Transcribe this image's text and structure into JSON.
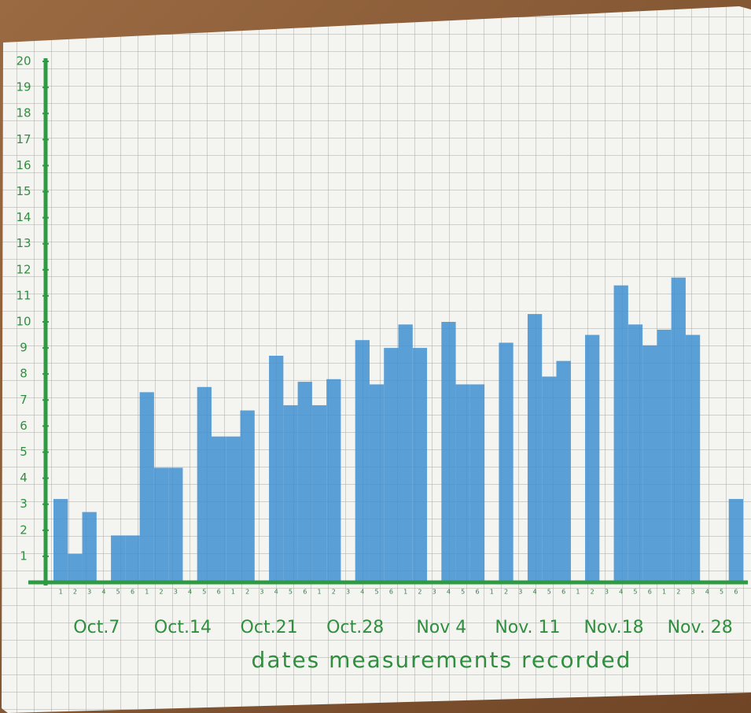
{
  "chart_data": {
    "type": "bar",
    "categories": [
      "1",
      "2",
      "3",
      "4",
      "5",
      "6",
      "1",
      "2",
      "3",
      "4",
      "5",
      "6",
      "1",
      "2",
      "3",
      "4",
      "5",
      "6",
      "1",
      "2",
      "3",
      "4",
      "5",
      "6",
      "1",
      "2",
      "3",
      "4",
      "5",
      "6",
      "1",
      "2",
      "3",
      "4",
      "5",
      "6",
      "1",
      "2",
      "3",
      "4",
      "5",
      "6",
      "1",
      "2",
      "3",
      "4",
      "5",
      "6"
    ],
    "values": [
      3.2,
      1.1,
      2.7,
      0,
      1.8,
      1.8,
      7.3,
      4.4,
      4.4,
      0,
      7.5,
      5.6,
      5.6,
      6.6,
      0,
      8.7,
      6.8,
      7.7,
      6.8,
      7.8,
      0,
      9.3,
      7.6,
      9.0,
      9.9,
      9.0,
      0,
      10.0,
      7.6,
      7.6,
      0,
      9.2,
      0,
      10.3,
      7.9,
      8.5,
      0,
      9.5,
      0,
      11.4,
      9.9,
      9.1,
      9.7,
      11.7,
      9.5,
      0,
      0,
      3.2
    ],
    "week_labels": [
      "Oct.7",
      "Oct.14",
      "Oct.21",
      "Oct.28",
      "Nov 4",
      "Nov. 11",
      "Nov.18",
      "Nov. 28"
    ],
    "x_label": "dates measurements recorded",
    "color": "#3f8fd2",
    "axis_color": "#2f9a44",
    "ylim": [
      0,
      20
    ],
    "yticks": [
      1,
      2,
      3,
      4,
      5,
      6,
      7,
      8,
      9,
      10,
      11,
      12,
      13,
      14,
      15,
      16,
      17,
      18,
      19,
      20
    ]
  }
}
